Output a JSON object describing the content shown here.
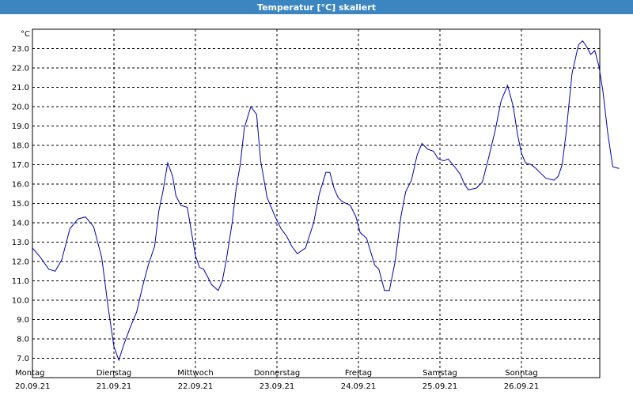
{
  "window": {
    "title": "Temperatur [°C] skaliert"
  },
  "chart_data": {
    "type": "line",
    "title": "Temperatur [°C] skaliert",
    "unit_label": "°C",
    "ylim": [
      6.0,
      24.0
    ],
    "y_ticks": [
      7.0,
      8.0,
      9.0,
      10.0,
      11.0,
      12.0,
      13.0,
      14.0,
      15.0,
      16.0,
      17.0,
      18.0,
      19.0,
      20.0,
      21.0,
      22.0,
      23.0
    ],
    "x_tick_labels": [
      {
        "day": "Montag",
        "date": "20.09.21"
      },
      {
        "day": "Dienstag",
        "date": "21.09.21"
      },
      {
        "day": "Mittwoch",
        "date": "22.09.21"
      },
      {
        "day": "Donnerstag",
        "date": "23.09.21"
      },
      {
        "day": "Freitag",
        "date": "24.09.21"
      },
      {
        "day": "Samstag",
        "date": "25.09.21"
      },
      {
        "day": "Sonntag",
        "date": "26.09.21"
      }
    ],
    "grid": true,
    "line_color": "#0000b4",
    "series": [
      {
        "values": [
          [
            0.0,
            12.7
          ],
          [
            0.1,
            12.2
          ],
          [
            0.2,
            11.6
          ],
          [
            0.28,
            11.5
          ],
          [
            0.36,
            12.1
          ],
          [
            0.46,
            13.7
          ],
          [
            0.56,
            14.2
          ],
          [
            0.65,
            14.3
          ],
          [
            0.75,
            13.8
          ],
          [
            0.85,
            12.2
          ],
          [
            0.93,
            9.6
          ],
          [
            1.0,
            7.6
          ],
          [
            1.06,
            6.9
          ],
          [
            1.12,
            7.7
          ],
          [
            1.2,
            8.6
          ],
          [
            1.28,
            9.4
          ],
          [
            1.35,
            10.7
          ],
          [
            1.42,
            11.8
          ],
          [
            1.5,
            12.8
          ],
          [
            1.55,
            14.6
          ],
          [
            1.6,
            15.6
          ],
          [
            1.66,
            17.1
          ],
          [
            1.72,
            16.4
          ],
          [
            1.76,
            15.4
          ],
          [
            1.82,
            14.9
          ],
          [
            1.9,
            14.8
          ],
          [
            1.96,
            13.3
          ],
          [
            2.0,
            12.3
          ],
          [
            2.05,
            11.7
          ],
          [
            2.1,
            11.6
          ],
          [
            2.2,
            10.8
          ],
          [
            2.28,
            10.5
          ],
          [
            2.33,
            11.0
          ],
          [
            2.38,
            12.1
          ],
          [
            2.45,
            14.0
          ],
          [
            2.5,
            15.8
          ],
          [
            2.55,
            17.0
          ],
          [
            2.6,
            18.9
          ],
          [
            2.68,
            20.0
          ],
          [
            2.75,
            19.6
          ],
          [
            2.8,
            17.2
          ],
          [
            2.88,
            15.3
          ],
          [
            2.98,
            14.3
          ],
          [
            3.05,
            13.7
          ],
          [
            3.12,
            13.3
          ],
          [
            3.18,
            12.8
          ],
          [
            3.25,
            12.4
          ],
          [
            3.35,
            12.7
          ],
          [
            3.45,
            14.0
          ],
          [
            3.52,
            15.5
          ],
          [
            3.6,
            16.6
          ],
          [
            3.65,
            16.6
          ],
          [
            3.7,
            15.8
          ],
          [
            3.75,
            15.3
          ],
          [
            3.8,
            15.1
          ],
          [
            3.9,
            14.9
          ],
          [
            3.97,
            14.3
          ],
          [
            4.02,
            13.5
          ],
          [
            4.1,
            13.2
          ],
          [
            4.15,
            12.5
          ],
          [
            4.2,
            11.8
          ],
          [
            4.25,
            11.6
          ],
          [
            4.32,
            10.5
          ],
          [
            4.38,
            10.5
          ],
          [
            4.45,
            12.0
          ],
          [
            4.52,
            14.3
          ],
          [
            4.58,
            15.6
          ],
          [
            4.65,
            16.2
          ],
          [
            4.72,
            17.5
          ],
          [
            4.78,
            18.1
          ],
          [
            4.85,
            17.8
          ],
          [
            4.92,
            17.7
          ],
          [
            4.98,
            17.3
          ],
          [
            5.05,
            17.2
          ],
          [
            5.1,
            17.3
          ],
          [
            5.18,
            16.9
          ],
          [
            5.25,
            16.5
          ],
          [
            5.3,
            16.0
          ],
          [
            5.35,
            15.7
          ],
          [
            5.45,
            15.8
          ],
          [
            5.52,
            16.1
          ],
          [
            5.6,
            17.4
          ],
          [
            5.68,
            18.8
          ],
          [
            5.75,
            20.3
          ],
          [
            5.83,
            21.1
          ],
          [
            5.9,
            20.0
          ],
          [
            5.95,
            18.6
          ],
          [
            6.0,
            17.6
          ],
          [
            6.05,
            17.1
          ],
          [
            6.12,
            17.0
          ],
          [
            6.18,
            16.8
          ],
          [
            6.25,
            16.5
          ],
          [
            6.3,
            16.3
          ],
          [
            6.4,
            16.2
          ],
          [
            6.45,
            16.4
          ],
          [
            6.5,
            17.0
          ],
          [
            6.55,
            18.7
          ],
          [
            6.62,
            21.7
          ],
          [
            6.7,
            23.2
          ],
          [
            6.75,
            23.4
          ],
          [
            6.8,
            23.1
          ],
          [
            6.85,
            22.7
          ],
          [
            6.9,
            22.9
          ],
          [
            6.95,
            22.1
          ],
          [
            7.0,
            20.8
          ],
          [
            7.06,
            18.6
          ],
          [
            7.12,
            16.9
          ],
          [
            7.2,
            16.8
          ]
        ]
      }
    ]
  }
}
